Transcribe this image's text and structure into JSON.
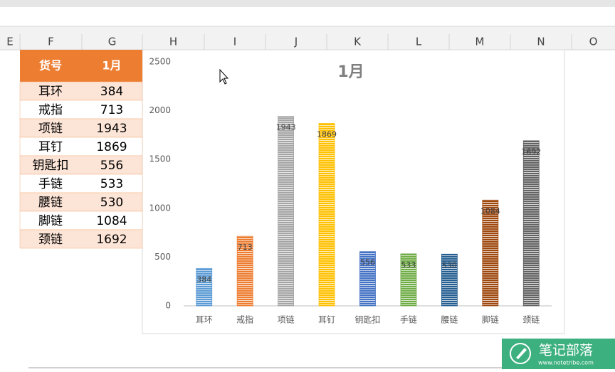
{
  "columns": [
    "E",
    "F",
    "G",
    "H",
    "I",
    "J",
    "K",
    "L",
    "M",
    "N",
    "O"
  ],
  "table": {
    "headers": [
      "货号",
      "1月"
    ]
  },
  "watermark": {
    "title": "笔记部落",
    "url": "www.notetribe.com"
  },
  "chart_data": {
    "type": "bar",
    "title": "1月",
    "categories": [
      "耳环",
      "戒指",
      "项链",
      "耳钉",
      "钥匙扣",
      "手链",
      "腰链",
      "脚链",
      "颈链"
    ],
    "values": [
      384,
      713,
      1943,
      1869,
      556,
      533,
      530,
      1084,
      1692
    ],
    "colors": [
      "#5b9bd5",
      "#ed7d31",
      "#a5a5a5",
      "#ffc000",
      "#4472c4",
      "#70ad47",
      "#255e91",
      "#9e480e",
      "#636363"
    ],
    "ylim": [
      0,
      2500
    ],
    "yticks": [
      0,
      500,
      1000,
      1500,
      2000,
      2500
    ],
    "grid": false
  }
}
